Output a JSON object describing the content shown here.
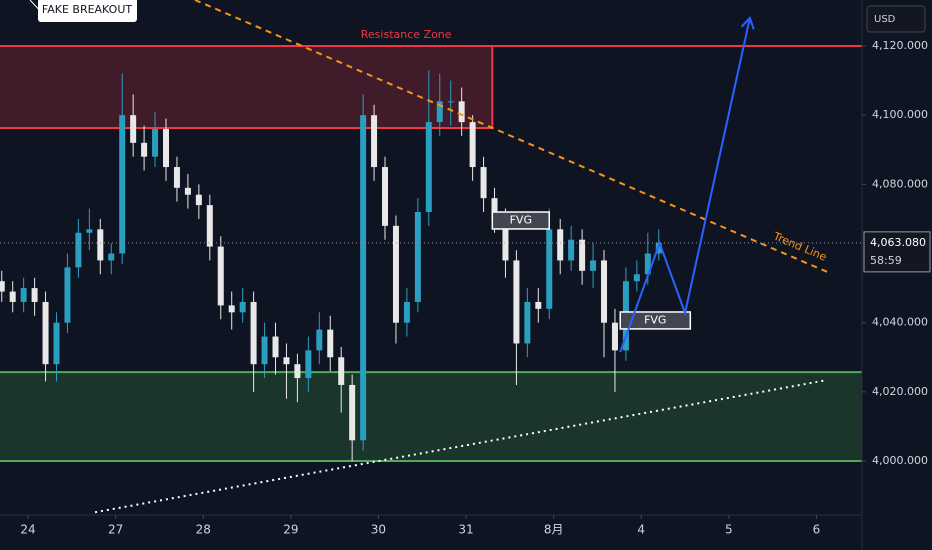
{
  "chart_data": {
    "type": "candlestick",
    "currency": "USD",
    "x": [
      -0.3,
      -0.175,
      -0.05,
      0.075,
      0.2,
      0.325,
      0.45,
      0.575,
      0.7,
      0.825,
      0.95,
      1.075,
      1.2,
      1.325,
      1.45,
      1.575,
      1.7,
      1.825,
      1.95,
      2.075,
      2.2,
      2.325,
      2.45,
      2.575,
      2.7,
      2.825,
      2.95,
      3.075,
      3.2,
      3.325,
      3.45,
      3.575,
      3.7,
      3.825,
      3.95,
      4.075,
      4.2,
      4.325,
      4.45,
      4.575,
      4.7,
      4.825,
      4.95,
      5.075,
      5.2,
      5.325,
      5.45,
      5.575,
      5.7,
      5.825,
      5.95,
      6.075,
      6.2,
      6.325,
      6.45,
      6.575,
      6.7,
      6.825,
      6.95,
      7.075,
      7.2
    ],
    "open": [
      4052,
      4049,
      4046,
      4050,
      4046,
      4028,
      4040,
      4056,
      4066,
      4067,
      4058,
      4060,
      4100,
      4092,
      4088,
      4096,
      4085,
      4079,
      4077,
      4074,
      4062,
      4045,
      4043,
      4046,
      4028,
      4036,
      4030,
      4028,
      4024,
      4032,
      4038,
      4030,
      4022,
      4006,
      4100,
      4085,
      4068,
      4040,
      4046,
      4072,
      4098,
      4104,
      4104,
      4098,
      4085,
      4076,
      4070,
      4058,
      4034,
      4046,
      4044,
      4067,
      4058,
      4064,
      4055,
      4058,
      4040,
      4032,
      4052,
      4054,
      4060
    ],
    "high": [
      4055,
      4052,
      4053,
      4053,
      4049,
      4043,
      4060,
      4070,
      4073,
      4070,
      4063,
      4112,
      4106,
      4097,
      4101,
      4099,
      4088,
      4083,
      4080,
      4077,
      4065,
      4049,
      4050,
      4049,
      4040,
      4040,
      4034,
      4031,
      4036,
      4043,
      4042,
      4033,
      4025,
      4106,
      4103,
      4088,
      4071,
      4050,
      4076,
      4113,
      4112,
      4110,
      4108,
      4100,
      4088,
      4079,
      4073,
      4061,
      4050,
      4050,
      4073,
      4070,
      4068,
      4067,
      4063,
      4061,
      4044,
      4056,
      4058,
      4066,
      4067
    ],
    "low": [
      4046,
      4043,
      4043,
      4042,
      4023,
      4023,
      4037,
      4053,
      4061,
      4054,
      4054,
      4057,
      4088,
      4084,
      4085,
      4081,
      4075,
      4073,
      4070,
      4058,
      4041,
      4038,
      4040,
      4020,
      4024,
      4025,
      4018,
      4017,
      4020,
      4028,
      4026,
      4014,
      4000,
      4003,
      4081,
      4064,
      4034,
      4036,
      4043,
      4068,
      4094,
      4097,
      4094,
      4081,
      4072,
      4066,
      4053,
      4022,
      4030,
      4040,
      4041,
      4054,
      4055,
      4051,
      4050,
      4030,
      4020,
      4029,
      4049,
      4051,
      4058
    ],
    "close": [
      4049,
      4046,
      4050,
      4046,
      4028,
      4040,
      4056,
      4066,
      4067,
      4058,
      4060,
      4100,
      4092,
      4088,
      4096,
      4085,
      4079,
      4077,
      4074,
      4062,
      4045,
      4043,
      4046,
      4028,
      4036,
      4030,
      4028,
      4024,
      4032,
      4038,
      4030,
      4022,
      4006,
      4100,
      4085,
      4068,
      4040,
      4046,
      4072,
      4098,
      4104,
      4104,
      4098,
      4085,
      4076,
      4070,
      4058,
      4034,
      4046,
      4044,
      4067,
      4058,
      4064,
      4055,
      4058,
      4040,
      4032,
      4052,
      4054,
      4060,
      4063.08
    ],
    "up_color": "#2a9fc0",
    "down_color": "#e8e8e8",
    "xlim": [
      -0.32,
      9.52
    ],
    "xticks": [
      {
        "value": 0,
        "label": "24"
      },
      {
        "value": 1,
        "label": "27"
      },
      {
        "value": 2,
        "label": "28"
      },
      {
        "value": 3,
        "label": "29"
      },
      {
        "value": 4,
        "label": "30"
      },
      {
        "value": 5,
        "label": "31"
      },
      {
        "value": 6,
        "label": "8月"
      },
      {
        "value": 7,
        "label": "4"
      },
      {
        "value": 8,
        "label": "5"
      },
      {
        "value": 9,
        "label": "6"
      }
    ],
    "ylim": [
      3984.4,
      4133.3
    ],
    "yticks": [
      {
        "value": 4000,
        "label": "4,000.000"
      },
      {
        "value": 4020,
        "label": "4,020.000"
      },
      {
        "value": 4040,
        "label": "4,040.000"
      },
      {
        "value": 4080,
        "label": "4,080.000"
      },
      {
        "value": 4100,
        "label": "4,100.000"
      },
      {
        "value": 4120,
        "label": "4,120.000"
      }
    ],
    "last_price": {
      "value": 4063.08,
      "label": "4,063.080"
    },
    "countdown": "58:59",
    "zones": [
      {
        "label": "Resistance Zone",
        "range": [
          4096.3,
          4120
        ],
        "x_end": 5.3,
        "color": "#f23645"
      },
      {
        "range": [
          4000,
          4025.7
        ],
        "color": "#4caf50"
      }
    ],
    "lines": [
      {
        "name": "Trend Line",
        "x": [
          1.906,
          9.13
        ],
        "y": [
          4133.3,
          4054.6
        ],
        "color": "#f7931a",
        "style": "dashed"
      },
      {
        "x": [
          0.765,
          9.12
        ],
        "y": [
          3985.2,
          4023.4
        ],
        "color": "#ffffff",
        "style": "dotted"
      }
    ],
    "projection": {
      "x": [
        6.76,
        7.21,
        7.5,
        8.24
      ],
      "y": [
        4031.5,
        4063.0,
        4042.8,
        4128.1
      ],
      "color": "#2962ff"
    },
    "fvg": [
      {
        "label": "FVG",
        "x": [
          5.3,
          5.95
        ],
        "y": [
          4067.1,
          4072
        ]
      },
      {
        "label": "FVG",
        "x": [
          6.76,
          7.56
        ],
        "y": [
          4038.2,
          4043.1
        ]
      }
    ],
    "callout": "FAKE BREAKOUT"
  }
}
